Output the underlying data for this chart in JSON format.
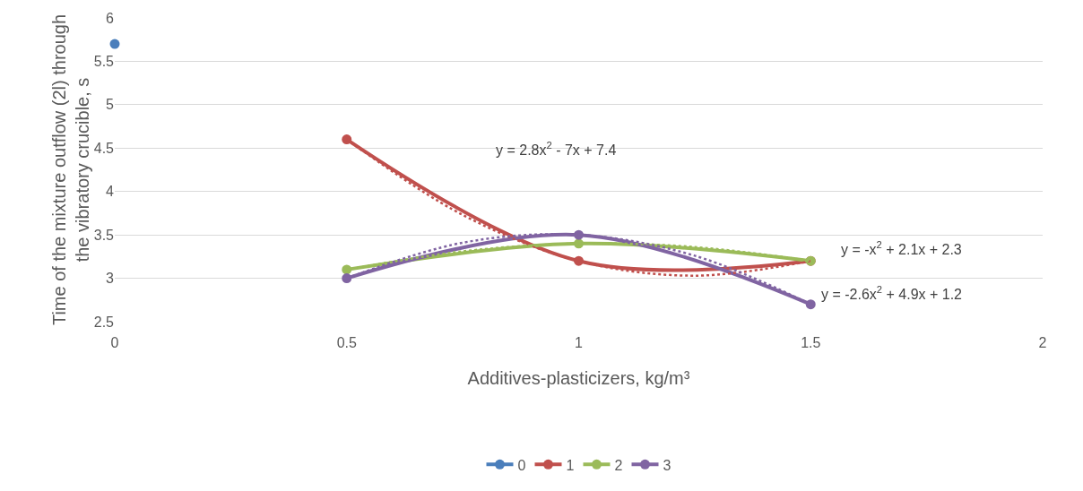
{
  "chart_data": {
    "type": "line",
    "xlabel": "Additives-plasticizers, kg/m³",
    "ylabel": "Time of the mixture outflow (2l) through\nthe vibratory crucible, s",
    "xlim": [
      0,
      2
    ],
    "xticks": [
      0,
      0.5,
      1,
      1.5,
      2
    ],
    "ylim": [
      2.5,
      6
    ],
    "yticks": [
      2.5,
      3,
      3.5,
      4,
      4.5,
      5,
      5.5,
      6
    ],
    "grid": "y",
    "legend": "bottom",
    "marker": "circle",
    "line_style": "solid",
    "series": [
      {
        "name": "0",
        "color": "#4a7ebb",
        "x": [
          0
        ],
        "values": [
          5.7
        ]
      },
      {
        "name": "1",
        "color": "#c0504d",
        "x": [
          0.5,
          1,
          1.5
        ],
        "values": [
          4.6,
          3.2,
          3.2
        ]
      },
      {
        "name": "2",
        "color": "#9bbb59",
        "x": [
          0.5,
          1,
          1.5
        ],
        "values": [
          3.1,
          3.4,
          3.2
        ]
      },
      {
        "name": "3",
        "color": "#8064a2",
        "x": [
          0.5,
          1,
          1.5
        ],
        "values": [
          3.0,
          3.5,
          2.7
        ]
      },
      {
        "type": "line",
        "color": "#c0504d",
        "line_style": "dotted",
        "marker": "none",
        "x": [
          0.5,
          0.75,
          1,
          1.25,
          1.5
        ],
        "values": [
          4.6,
          3.73,
          3.2,
          3.03,
          3.2
        ]
      },
      {
        "type": "line",
        "color": "#9bbb59",
        "line_style": "dotted",
        "marker": "none",
        "x": [
          0.5,
          0.75,
          1,
          1.25,
          1.5
        ],
        "values": [
          3.1,
          3.31,
          3.4,
          3.36,
          3.2
        ]
      },
      {
        "type": "line",
        "color": "#8064a2",
        "line_style": "dotted",
        "marker": "none",
        "x": [
          0.5,
          0.75,
          1,
          1.25,
          1.5
        ],
        "values": [
          3.0,
          3.41,
          3.5,
          3.26,
          2.7
        ]
      }
    ],
    "annotations": [
      "y = 2.8x$^{2}$ - 7x + 7.4",
      "y = -x$^{2}$ + 2.1x + 2.3",
      "y = -2.6x$^{2}$ + 4.9x + 1.2"
    ]
  }
}
